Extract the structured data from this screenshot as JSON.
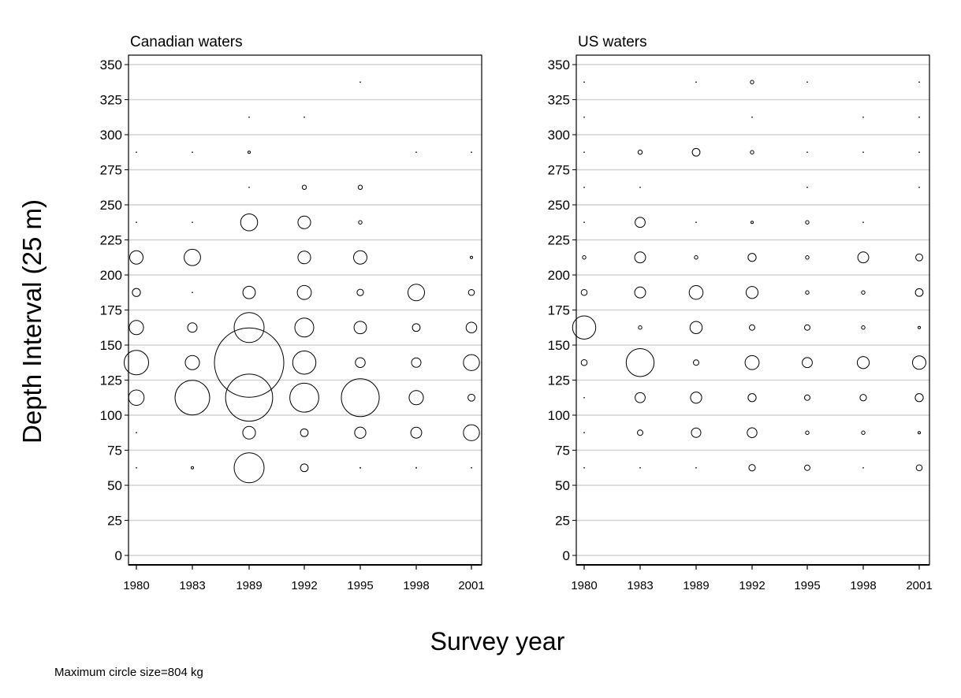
{
  "figure": {
    "ylabel": "Depth Interval (25 m)",
    "xlabel": "Survey year",
    "footnote": "Maximum circle size=804 kg"
  },
  "chart_data": [
    {
      "type": "scatter",
      "title": "Canadian waters",
      "categories": [
        "1980",
        "1983",
        "1989",
        "1992",
        "1995",
        "1998",
        "2001"
      ],
      "yticks": [
        0,
        25,
        50,
        75,
        100,
        125,
        150,
        175,
        200,
        225,
        250,
        275,
        300,
        325,
        350
      ],
      "ylim": [
        -5,
        355
      ],
      "grid": "horizontal",
      "max_circle_kg": 804,
      "points": [
        {
          "year": "1980",
          "depth": 62.5,
          "kg": 0.1
        },
        {
          "year": "1980",
          "depth": 87.5,
          "kg": 0.1
        },
        {
          "year": "1980",
          "depth": 112.5,
          "kg": 40
        },
        {
          "year": "1980",
          "depth": 137.5,
          "kg": 100
        },
        {
          "year": "1980",
          "depth": 162.5,
          "kg": 34
        },
        {
          "year": "1980",
          "depth": 187.5,
          "kg": 11
        },
        {
          "year": "1980",
          "depth": 212.5,
          "kg": 30
        },
        {
          "year": "1980",
          "depth": 237.5,
          "kg": 0.1
        },
        {
          "year": "1980",
          "depth": 287.5,
          "kg": 0.1
        },
        {
          "year": "1983",
          "depth": 62.5,
          "kg": 1
        },
        {
          "year": "1983",
          "depth": 112.5,
          "kg": 200
        },
        {
          "year": "1983",
          "depth": 137.5,
          "kg": 34
        },
        {
          "year": "1983",
          "depth": 162.5,
          "kg": 15
        },
        {
          "year": "1983",
          "depth": 187.5,
          "kg": 0.1
        },
        {
          "year": "1983",
          "depth": 212.5,
          "kg": 45
        },
        {
          "year": "1983",
          "depth": 237.5,
          "kg": 0.1
        },
        {
          "year": "1983",
          "depth": 287.5,
          "kg": 0.1
        },
        {
          "year": "1989",
          "depth": 62.5,
          "kg": 150
        },
        {
          "year": "1989",
          "depth": 87.5,
          "kg": 27
        },
        {
          "year": "1989",
          "depth": 112.5,
          "kg": 370
        },
        {
          "year": "1989",
          "depth": 137.5,
          "kg": 804
        },
        {
          "year": "1989",
          "depth": 162.5,
          "kg": 150
        },
        {
          "year": "1989",
          "depth": 187.5,
          "kg": 26
        },
        {
          "year": "1989",
          "depth": 237.5,
          "kg": 48
        },
        {
          "year": "1989",
          "depth": 262.5,
          "kg": 0.1
        },
        {
          "year": "1989",
          "depth": 287.5,
          "kg": 1
        },
        {
          "year": "1989",
          "depth": 312.5,
          "kg": 0.1
        },
        {
          "year": "1992",
          "depth": 62.5,
          "kg": 10
        },
        {
          "year": "1992",
          "depth": 87.5,
          "kg": 10
        },
        {
          "year": "1992",
          "depth": 112.5,
          "kg": 140
        },
        {
          "year": "1992",
          "depth": 137.5,
          "kg": 90
        },
        {
          "year": "1992",
          "depth": 162.5,
          "kg": 60
        },
        {
          "year": "1992",
          "depth": 187.5,
          "kg": 33
        },
        {
          "year": "1992",
          "depth": 212.5,
          "kg": 27
        },
        {
          "year": "1992",
          "depth": 237.5,
          "kg": 27
        },
        {
          "year": "1992",
          "depth": 262.5,
          "kg": 3
        },
        {
          "year": "1992",
          "depth": 312.5,
          "kg": 0.1
        },
        {
          "year": "1995",
          "depth": 62.5,
          "kg": 0.2
        },
        {
          "year": "1995",
          "depth": 87.5,
          "kg": 21
        },
        {
          "year": "1995",
          "depth": 112.5,
          "kg": 240
        },
        {
          "year": "1995",
          "depth": 137.5,
          "kg": 16
        },
        {
          "year": "1995",
          "depth": 162.5,
          "kg": 26
        },
        {
          "year": "1995",
          "depth": 187.5,
          "kg": 7
        },
        {
          "year": "1995",
          "depth": 212.5,
          "kg": 30
        },
        {
          "year": "1995",
          "depth": 237.5,
          "kg": 2
        },
        {
          "year": "1995",
          "depth": 262.5,
          "kg": 3
        },
        {
          "year": "1995",
          "depth": 337.5,
          "kg": 0.1
        },
        {
          "year": "1998",
          "depth": 62.5,
          "kg": 0.2
        },
        {
          "year": "1998",
          "depth": 87.5,
          "kg": 20
        },
        {
          "year": "1998",
          "depth": 112.5,
          "kg": 34
        },
        {
          "year": "1998",
          "depth": 137.5,
          "kg": 15
        },
        {
          "year": "1998",
          "depth": 162.5,
          "kg": 10
        },
        {
          "year": "1998",
          "depth": 187.5,
          "kg": 46
        },
        {
          "year": "1998",
          "depth": 287.5,
          "kg": 0.1
        },
        {
          "year": "2001",
          "depth": 62.5,
          "kg": 0.1
        },
        {
          "year": "2001",
          "depth": 87.5,
          "kg": 43
        },
        {
          "year": "2001",
          "depth": 112.5,
          "kg": 8
        },
        {
          "year": "2001",
          "depth": 137.5,
          "kg": 43
        },
        {
          "year": "2001",
          "depth": 162.5,
          "kg": 19
        },
        {
          "year": "2001",
          "depth": 187.5,
          "kg": 6
        },
        {
          "year": "2001",
          "depth": 212.5,
          "kg": 1
        },
        {
          "year": "2001",
          "depth": 287.5,
          "kg": 0.1
        }
      ]
    },
    {
      "type": "scatter",
      "title": "US waters",
      "categories": [
        "1980",
        "1983",
        "1989",
        "1992",
        "1995",
        "1998",
        "2001"
      ],
      "yticks": [
        0,
        25,
        50,
        75,
        100,
        125,
        150,
        175,
        200,
        225,
        250,
        275,
        300,
        325,
        350
      ],
      "ylim": [
        -5,
        355
      ],
      "grid": "horizontal",
      "max_circle_kg": 804,
      "points": [
        {
          "year": "1980",
          "depth": 62.5,
          "kg": 0.1
        },
        {
          "year": "1980",
          "depth": 87.5,
          "kg": 0.1
        },
        {
          "year": "1980",
          "depth": 112.5,
          "kg": 0.1
        },
        {
          "year": "1980",
          "depth": 137.5,
          "kg": 6
        },
        {
          "year": "1980",
          "depth": 162.5,
          "kg": 90
        },
        {
          "year": "1980",
          "depth": 187.5,
          "kg": 6
        },
        {
          "year": "1980",
          "depth": 212.5,
          "kg": 2
        },
        {
          "year": "1980",
          "depth": 237.5,
          "kg": 0.1
        },
        {
          "year": "1980",
          "depth": 262.5,
          "kg": 0.1
        },
        {
          "year": "1980",
          "depth": 287.5,
          "kg": 0.1
        },
        {
          "year": "1980",
          "depth": 312.5,
          "kg": 0.1
        },
        {
          "year": "1980",
          "depth": 337.5,
          "kg": 0.1
        },
        {
          "year": "1983",
          "depth": 62.5,
          "kg": 0.1
        },
        {
          "year": "1983",
          "depth": 87.5,
          "kg": 5
        },
        {
          "year": "1983",
          "depth": 112.5,
          "kg": 17
        },
        {
          "year": "1983",
          "depth": 137.5,
          "kg": 130
        },
        {
          "year": "1983",
          "depth": 162.5,
          "kg": 2
        },
        {
          "year": "1983",
          "depth": 187.5,
          "kg": 20
        },
        {
          "year": "1983",
          "depth": 212.5,
          "kg": 20
        },
        {
          "year": "1983",
          "depth": 237.5,
          "kg": 17
        },
        {
          "year": "1983",
          "depth": 262.5,
          "kg": 0.1
        },
        {
          "year": "1983",
          "depth": 287.5,
          "kg": 3
        },
        {
          "year": "1989",
          "depth": 62.5,
          "kg": 0.1
        },
        {
          "year": "1989",
          "depth": 87.5,
          "kg": 15
        },
        {
          "year": "1989",
          "depth": 112.5,
          "kg": 21
        },
        {
          "year": "1989",
          "depth": 137.5,
          "kg": 5
        },
        {
          "year": "1989",
          "depth": 162.5,
          "kg": 25
        },
        {
          "year": "1989",
          "depth": 187.5,
          "kg": 32
        },
        {
          "year": "1989",
          "depth": 212.5,
          "kg": 2
        },
        {
          "year": "1989",
          "depth": 237.5,
          "kg": 0.1
        },
        {
          "year": "1989",
          "depth": 287.5,
          "kg": 10
        },
        {
          "year": "1989",
          "depth": 337.5,
          "kg": 0.1
        },
        {
          "year": "1992",
          "depth": 62.5,
          "kg": 7
        },
        {
          "year": "1992",
          "depth": 87.5,
          "kg": 16
        },
        {
          "year": "1992",
          "depth": 112.5,
          "kg": 11
        },
        {
          "year": "1992",
          "depth": 137.5,
          "kg": 33
        },
        {
          "year": "1992",
          "depth": 162.5,
          "kg": 5
        },
        {
          "year": "1992",
          "depth": 187.5,
          "kg": 24
        },
        {
          "year": "1992",
          "depth": 212.5,
          "kg": 11
        },
        {
          "year": "1992",
          "depth": 237.5,
          "kg": 1
        },
        {
          "year": "1992",
          "depth": 287.5,
          "kg": 2
        },
        {
          "year": "1992",
          "depth": 312.5,
          "kg": 0.1
        },
        {
          "year": "1992",
          "depth": 337.5,
          "kg": 2
        },
        {
          "year": "1995",
          "depth": 62.5,
          "kg": 5
        },
        {
          "year": "1995",
          "depth": 87.5,
          "kg": 2
        },
        {
          "year": "1995",
          "depth": 112.5,
          "kg": 5
        },
        {
          "year": "1995",
          "depth": 137.5,
          "kg": 17
        },
        {
          "year": "1995",
          "depth": 162.5,
          "kg": 5
        },
        {
          "year": "1995",
          "depth": 187.5,
          "kg": 2
        },
        {
          "year": "1995",
          "depth": 212.5,
          "kg": 2
        },
        {
          "year": "1995",
          "depth": 237.5,
          "kg": 2
        },
        {
          "year": "1995",
          "depth": 262.5,
          "kg": 0.1
        },
        {
          "year": "1995",
          "depth": 287.5,
          "kg": 0.1
        },
        {
          "year": "1995",
          "depth": 337.5,
          "kg": 0.1
        },
        {
          "year": "1998",
          "depth": 62.5,
          "kg": 0.1
        },
        {
          "year": "1998",
          "depth": 87.5,
          "kg": 2
        },
        {
          "year": "1998",
          "depth": 112.5,
          "kg": 7
        },
        {
          "year": "1998",
          "depth": 137.5,
          "kg": 24
        },
        {
          "year": "1998",
          "depth": 162.5,
          "kg": 2
        },
        {
          "year": "1998",
          "depth": 187.5,
          "kg": 2
        },
        {
          "year": "1998",
          "depth": 212.5,
          "kg": 20
        },
        {
          "year": "1998",
          "depth": 237.5,
          "kg": 0.1
        },
        {
          "year": "1998",
          "depth": 287.5,
          "kg": 0.1
        },
        {
          "year": "1998",
          "depth": 312.5,
          "kg": 0.1
        },
        {
          "year": "2001",
          "depth": 62.5,
          "kg": 6
        },
        {
          "year": "2001",
          "depth": 87.5,
          "kg": 1
        },
        {
          "year": "2001",
          "depth": 112.5,
          "kg": 11
        },
        {
          "year": "2001",
          "depth": 137.5,
          "kg": 30
        },
        {
          "year": "2001",
          "depth": 162.5,
          "kg": 1
        },
        {
          "year": "2001",
          "depth": 187.5,
          "kg": 10
        },
        {
          "year": "2001",
          "depth": 212.5,
          "kg": 8
        },
        {
          "year": "2001",
          "depth": 262.5,
          "kg": 0.1
        },
        {
          "year": "2001",
          "depth": 287.5,
          "kg": 0.1
        },
        {
          "year": "2001",
          "depth": 312.5,
          "kg": 0.1
        },
        {
          "year": "2001",
          "depth": 337.5,
          "kg": 0.1
        }
      ]
    }
  ]
}
